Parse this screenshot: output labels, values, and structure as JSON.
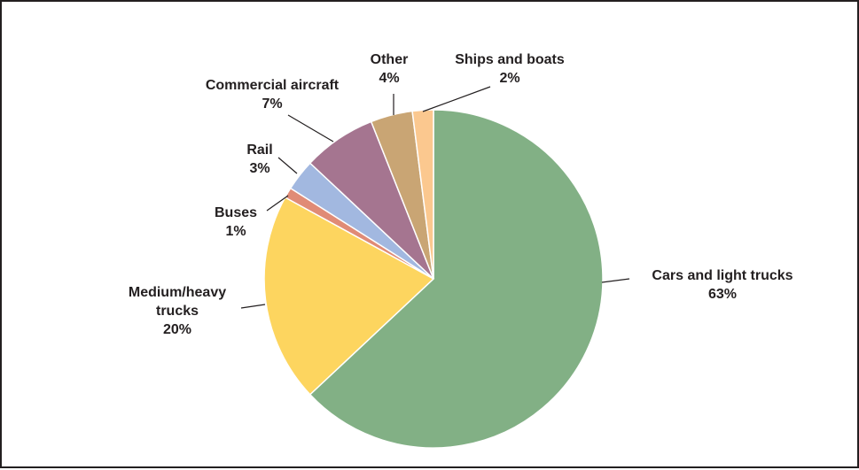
{
  "chart_data": {
    "type": "pie",
    "slices": [
      {
        "name": "Cars and light trucks",
        "value": 63,
        "label_lines": [
          "Cars and light trucks"
        ],
        "pct_label": "63%",
        "color": "#82b085"
      },
      {
        "name": "Medium/heavy trucks",
        "value": 20,
        "label_lines": [
          "Medium/heavy",
          "trucks"
        ],
        "pct_label": "20%",
        "color": "#fdd55f"
      },
      {
        "name": "Buses",
        "value": 1,
        "label_lines": [
          "Buses"
        ],
        "pct_label": "1%",
        "color": "#e08b76"
      },
      {
        "name": "Rail",
        "value": 3,
        "label_lines": [
          "Rail"
        ],
        "pct_label": "3%",
        "color": "#a2b8e0"
      },
      {
        "name": "Commercial aircraft",
        "value": 7,
        "label_lines": [
          "Commercial aircraft"
        ],
        "pct_label": "7%",
        "color": "#a57590"
      },
      {
        "name": "Other",
        "value": 4,
        "label_lines": [
          "Other"
        ],
        "pct_label": "4%",
        "color": "#c9a574"
      },
      {
        "name": "Ships and boats",
        "value": 2,
        "label_lines": [
          "Ships and boats"
        ],
        "pct_label": "2%",
        "color": "#fbc88f"
      }
    ],
    "start": "12 o'clock",
    "direction": "clockwise",
    "legend": "none"
  }
}
